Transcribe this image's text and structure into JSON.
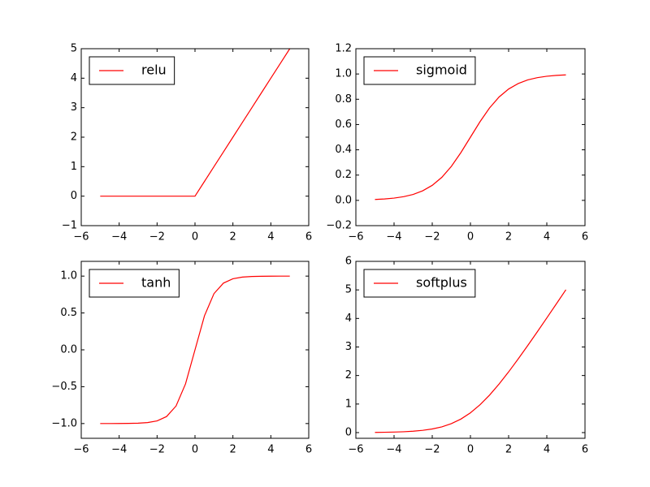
{
  "chart_data": [
    {
      "type": "line",
      "x": [
        -5,
        -4.5,
        -4,
        -3.5,
        -3,
        -2.5,
        -2,
        -1.5,
        -1,
        -0.5,
        0,
        0.5,
        1,
        1.5,
        2,
        2.5,
        3,
        3.5,
        4,
        4.5,
        5
      ],
      "series": [
        {
          "name": "relu",
          "color": "#ff0000",
          "values": [
            0,
            0,
            0,
            0,
            0,
            0,
            0,
            0,
            0,
            0,
            0,
            0.5,
            1,
            1.5,
            2,
            2.5,
            3,
            3.5,
            4,
            4.5,
            5
          ]
        }
      ],
      "xlim": [
        -6,
        6
      ],
      "xticks": [
        {
          "value": -6,
          "label": "−6"
        },
        {
          "value": -4,
          "label": "−4"
        },
        {
          "value": -2,
          "label": "−2"
        },
        0,
        2,
        4,
        6
      ],
      "ylim": [
        -1,
        5
      ],
      "yticks": [
        {
          "value": -1,
          "label": "−1"
        },
        0,
        1,
        2,
        3,
        4,
        5
      ],
      "legend": "upper left"
    },
    {
      "type": "line",
      "x": [
        -5,
        -4.5,
        -4,
        -3.5,
        -3,
        -2.5,
        -2,
        -1.5,
        -1,
        -0.5,
        0,
        0.5,
        1,
        1.5,
        2,
        2.5,
        3,
        3.5,
        4,
        4.5,
        5
      ],
      "series": [
        {
          "name": "sigmoid",
          "color": "#ff0000",
          "values": [
            0.007,
            0.011,
            0.018,
            0.029,
            0.047,
            0.076,
            0.119,
            0.182,
            0.269,
            0.378,
            0.5,
            0.622,
            0.731,
            0.818,
            0.881,
            0.924,
            0.953,
            0.971,
            0.982,
            0.989,
            0.993
          ]
        }
      ],
      "xlim": [
        -6,
        6
      ],
      "xticks": [
        {
          "value": -6,
          "label": "−6"
        },
        {
          "value": -4,
          "label": "−4"
        },
        {
          "value": -2,
          "label": "−2"
        },
        0,
        2,
        4,
        6
      ],
      "ylim": [
        -0.2,
        1.2
      ],
      "yticks": [
        {
          "value": -0.2,
          "label": "−0.2"
        },
        {
          "value": 0,
          "label": "0.0"
        },
        0.2,
        0.4,
        0.6,
        0.8,
        {
          "value": 1,
          "label": "1.0"
        },
        1.2
      ],
      "legend": "upper left"
    },
    {
      "type": "line",
      "x": [
        -5,
        -4.5,
        -4,
        -3.5,
        -3,
        -2.5,
        -2,
        -1.5,
        -1,
        -0.5,
        0,
        0.5,
        1,
        1.5,
        2,
        2.5,
        3,
        3.5,
        4,
        4.5,
        5
      ],
      "series": [
        {
          "name": "tanh",
          "color": "#ff0000",
          "values": [
            -1.0,
            -1.0,
            -0.999,
            -0.998,
            -0.995,
            -0.987,
            -0.964,
            -0.905,
            -0.762,
            -0.462,
            0,
            0.462,
            0.762,
            0.905,
            0.964,
            0.987,
            0.995,
            0.998,
            0.999,
            1.0,
            1.0
          ]
        }
      ],
      "xlim": [
        -6,
        6
      ],
      "xticks": [
        {
          "value": -6,
          "label": "−6"
        },
        {
          "value": -4,
          "label": "−4"
        },
        {
          "value": -2,
          "label": "−2"
        },
        0,
        2,
        4,
        6
      ],
      "ylim": [
        -1.2,
        1.2
      ],
      "yticks": [
        {
          "value": -1,
          "label": "−1.0"
        },
        {
          "value": -0.5,
          "label": "−0.5"
        },
        {
          "value": 0,
          "label": "0.0"
        },
        0.5,
        {
          "value": 1,
          "label": "1.0"
        }
      ],
      "legend": "upper left"
    },
    {
      "type": "line",
      "x": [
        -5,
        -4.5,
        -4,
        -3.5,
        -3,
        -2.5,
        -2,
        -1.5,
        -1,
        -0.5,
        0,
        0.5,
        1,
        1.5,
        2,
        2.5,
        3,
        3.5,
        4,
        4.5,
        5
      ],
      "series": [
        {
          "name": "softplus",
          "color": "#ff0000",
          "values": [
            0.007,
            0.011,
            0.018,
            0.03,
            0.049,
            0.079,
            0.127,
            0.201,
            0.313,
            0.474,
            0.693,
            0.974,
            1.313,
            1.701,
            2.127,
            2.579,
            3.049,
            3.53,
            4.018,
            4.511,
            5.007
          ]
        }
      ],
      "xlim": [
        -6,
        6
      ],
      "xticks": [
        {
          "value": -6,
          "label": "−6"
        },
        {
          "value": -4,
          "label": "−4"
        },
        {
          "value": -2,
          "label": "−2"
        },
        0,
        2,
        4,
        6
      ],
      "ylim": [
        -0.2,
        6
      ],
      "yticks": [
        0,
        1,
        2,
        3,
        4,
        5,
        6
      ],
      "legend": "upper left"
    }
  ]
}
